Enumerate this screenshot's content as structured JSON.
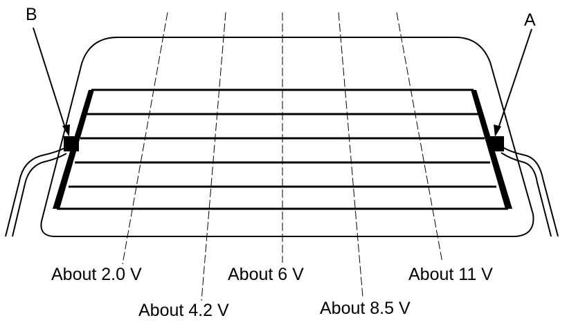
{
  "terminals": {
    "a": "A",
    "b": "B"
  },
  "voltage_labels": [
    "About 2.0 V",
    "About 4.2 V",
    "About 6 V",
    "About 8.5 V",
    "About 11 V"
  ],
  "colors": {
    "line": "#000000",
    "background": "#ffffff"
  }
}
